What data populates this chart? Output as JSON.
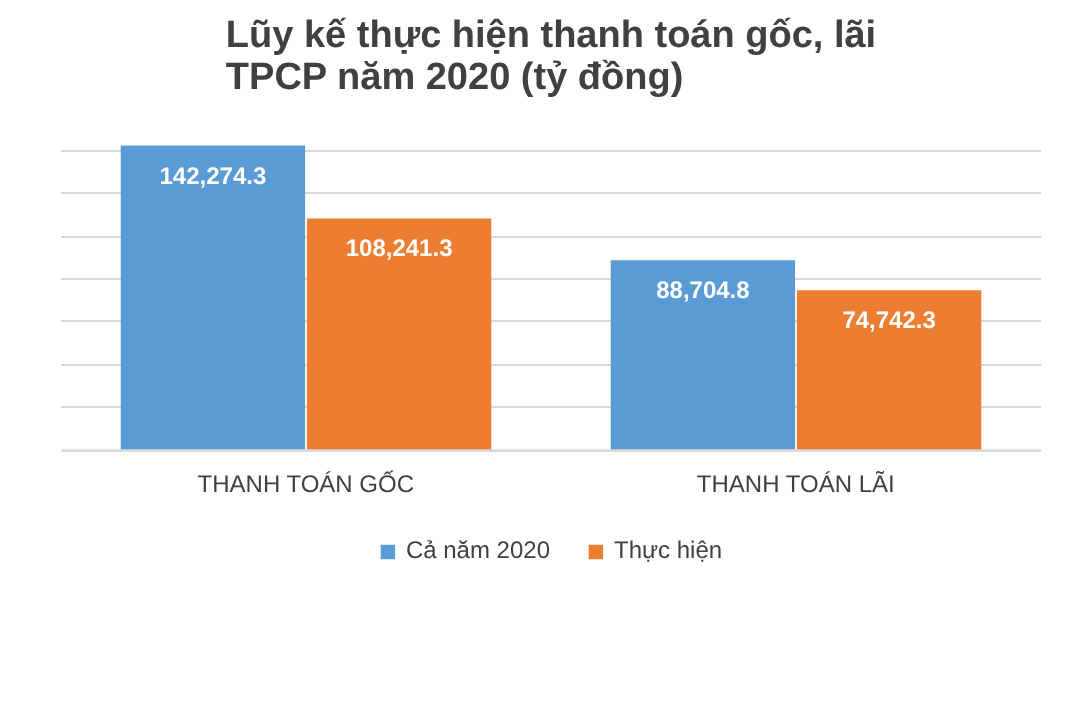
{
  "chart_data": {
    "type": "bar",
    "title": "Lũy kế thực hiện thanh toán gốc, lãi TPCP năm 2020 (tỷ đồng)",
    "categories": [
      "THANH TOÁN GỐC",
      "THANH TOÁN LÃI"
    ],
    "series": [
      {
        "name": "Cả năm 2020",
        "color": "#5b9bd5",
        "values": [
          142274.3,
          88704.8
        ],
        "value_labels": [
          "142,274.3",
          "88,704.8"
        ]
      },
      {
        "name": "Thực hiện",
        "color": "#ed7d31",
        "values": [
          108241.3,
          74742.3
        ],
        "value_labels": [
          "108,241.3",
          "74,742.3"
        ]
      }
    ],
    "tick_labels": "x",
    "grid": "y",
    "legend": "bottom"
  }
}
